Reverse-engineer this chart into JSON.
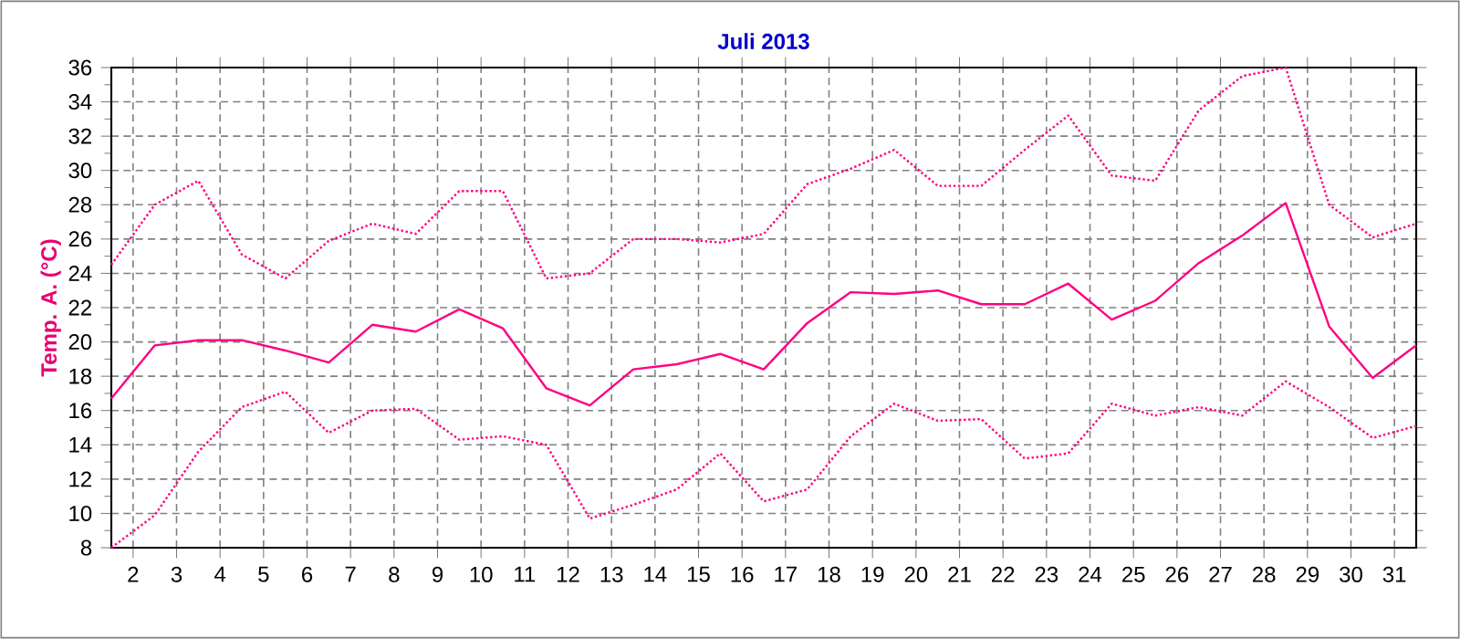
{
  "chart_data": {
    "type": "line",
    "title": "Juli 2013",
    "ylabel": "Temp. A. (°C)",
    "x": [
      1.5,
      2.5,
      3.5,
      4.5,
      5.5,
      6.5,
      7.5,
      8.5,
      9.5,
      10.5,
      11.5,
      12.5,
      13.5,
      14.5,
      15.5,
      16.5,
      17.5,
      18.5,
      19.5,
      20.5,
      21.5,
      22.5,
      23.5,
      24.5,
      25.5,
      26.5,
      27.5,
      28.5,
      29.5,
      30.5,
      31.5
    ],
    "series": [
      {
        "color": "#ff0080",
        "line_style": "dotted",
        "values": [
          24.5,
          28.0,
          29.4,
          25.1,
          23.7,
          25.9,
          26.9,
          26.3,
          28.8,
          28.8,
          23.7,
          24.0,
          26.0,
          26.0,
          25.8,
          26.3,
          29.2,
          30.1,
          31.2,
          29.1,
          29.1,
          31.2,
          33.2,
          29.7,
          29.4,
          33.5,
          35.5,
          36.0,
          28.0,
          26.1,
          26.9
        ]
      },
      {
        "color": "#ff0080",
        "line_style": "solid",
        "values": [
          16.7,
          19.8,
          20.1,
          20.1,
          19.5,
          18.8,
          21.0,
          20.6,
          21.9,
          20.8,
          17.3,
          16.3,
          18.4,
          18.7,
          19.3,
          18.4,
          21.1,
          22.9,
          22.8,
          23.0,
          22.2,
          22.2,
          23.4,
          21.3,
          22.4,
          24.6,
          26.2,
          28.1,
          20.9,
          17.9,
          19.8
        ]
      },
      {
        "color": "#ff0080",
        "line_style": "dotted",
        "values": [
          8.0,
          9.9,
          13.6,
          16.2,
          17.1,
          14.7,
          16.0,
          16.1,
          14.3,
          14.5,
          14.0,
          9.7,
          10.5,
          11.4,
          13.5,
          10.7,
          11.4,
          14.5,
          16.4,
          15.4,
          15.5,
          13.2,
          13.5,
          16.4,
          15.7,
          16.2,
          15.7,
          17.7,
          16.2,
          14.4,
          15.1
        ]
      }
    ],
    "xlim": [
      1.5,
      31.5
    ],
    "xticks": [
      2,
      3,
      4,
      5,
      6,
      7,
      8,
      9,
      10,
      11,
      12,
      13,
      14,
      15,
      16,
      17,
      18,
      19,
      20,
      21,
      22,
      23,
      24,
      25,
      26,
      27,
      28,
      29,
      30,
      31
    ],
    "ylim": [
      8,
      36
    ],
    "yticks": [
      8,
      10,
      12,
      14,
      16,
      18,
      20,
      22,
      24,
      26,
      28,
      30,
      32,
      34,
      36
    ],
    "grid": true,
    "marker": "none"
  }
}
